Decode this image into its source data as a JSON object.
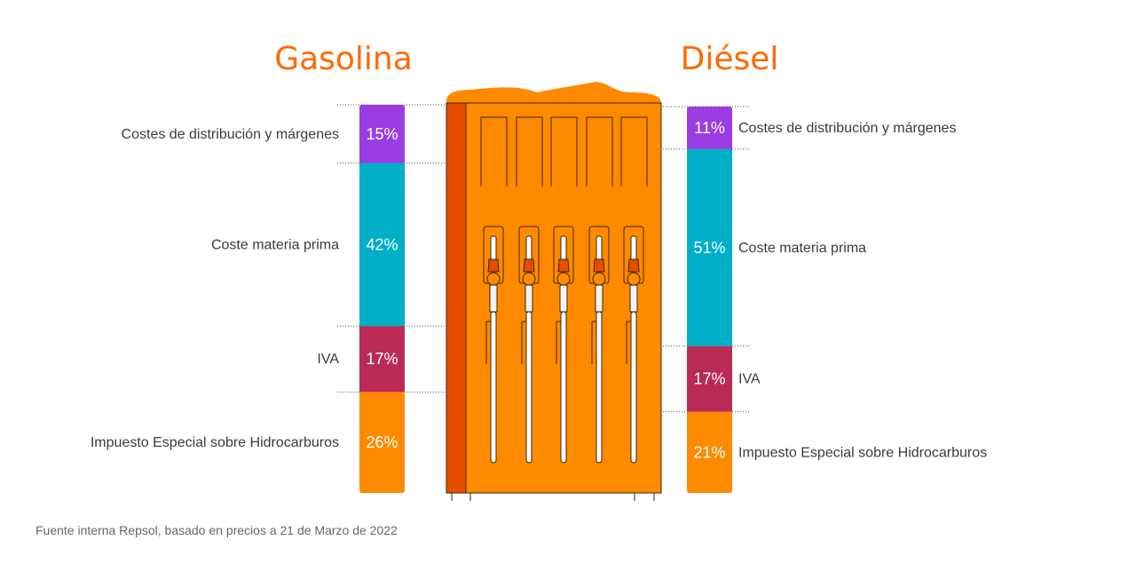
{
  "chart_data": [
    {
      "type": "bar",
      "stacked": true,
      "title": "Gasolina",
      "categories": [
        "Costes  de distribución y márgenes",
        "Coste materia prima",
        "IVA",
        "Impuesto Especial sobre Hidrocarburos"
      ],
      "values": [
        15,
        42,
        17,
        26
      ],
      "value_labels": [
        "15%",
        "42%",
        "17%",
        "26%"
      ],
      "colors": [
        "#9b3de3",
        "#00aec7",
        "#b92b56",
        "#ff8a00"
      ],
      "labels_side": "left"
    },
    {
      "type": "bar",
      "stacked": true,
      "title": "Diésel",
      "categories": [
        "Costes  de distribución y márgenes",
        "Coste materia prima",
        "IVA",
        "Impuesto Especial sobre Hidrocarburos"
      ],
      "values": [
        11,
        51,
        17,
        21
      ],
      "value_labels": [
        "11%",
        "51%",
        "17%",
        "21%"
      ],
      "colors": [
        "#9b3de3",
        "#00aec7",
        "#b92b56",
        "#ff8a00"
      ],
      "labels_side": "right"
    }
  ],
  "source": "Fuente interna Repsol, basado en precios a 21 de Marzo de 2022",
  "colors": {
    "title": "#ff6a00",
    "pump_body": "#ff8a00",
    "pump_side": "#e64d00",
    "pump_outline": "#3d2500"
  },
  "illustration": "fuel-pump-icon"
}
